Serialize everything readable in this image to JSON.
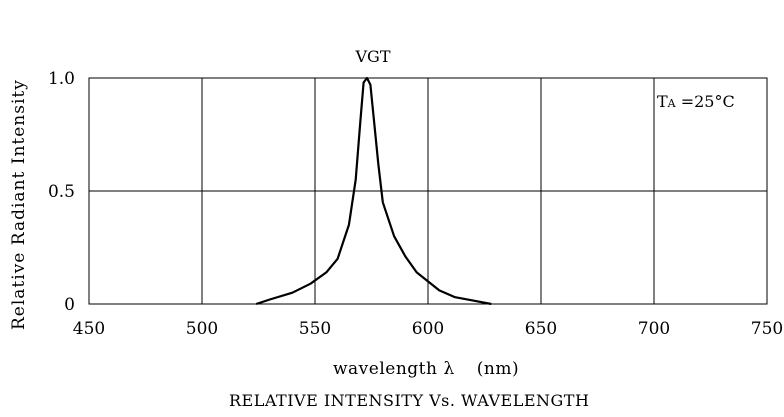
{
  "chart_data": {
    "type": "line",
    "title": "RELATIVE INTENSITY Vs. WAVELENGTH",
    "xlabel": "wavelength λ (nm)",
    "xlabel_main": "wavelength",
    "xlabel_symbol": "λ",
    "xlabel_unit": "(nm)",
    "ylabel": "Relative Radiant Intensity",
    "xlim": [
      450,
      750
    ],
    "ylim": [
      0,
      1.0
    ],
    "x_ticks": [
      450,
      500,
      550,
      600,
      650,
      700,
      750
    ],
    "x_tick_labels": [
      "450",
      "500",
      "550",
      "600",
      "650",
      "700",
      "750"
    ],
    "y_ticks": [
      0,
      0.5,
      1.0
    ],
    "y_tick_labels": [
      "0",
      "0.5",
      "1.0"
    ],
    "grid": true,
    "annotation": "TA =25°C",
    "annotation_main": "T",
    "annotation_sub": "A",
    "annotation_rest": " =25°C",
    "series": [
      {
        "name": "VGT",
        "x": [
          524,
          530,
          540,
          548,
          555,
          560,
          565,
          568,
          570,
          571.5,
          573,
          574.5,
          576,
          578,
          580,
          585,
          590,
          595,
          600,
          605,
          612,
          620,
          628
        ],
        "y": [
          0.0,
          0.02,
          0.05,
          0.09,
          0.14,
          0.2,
          0.35,
          0.55,
          0.8,
          0.98,
          1.0,
          0.97,
          0.82,
          0.62,
          0.45,
          0.3,
          0.21,
          0.14,
          0.1,
          0.06,
          0.03,
          0.015,
          0.0
        ]
      }
    ]
  }
}
